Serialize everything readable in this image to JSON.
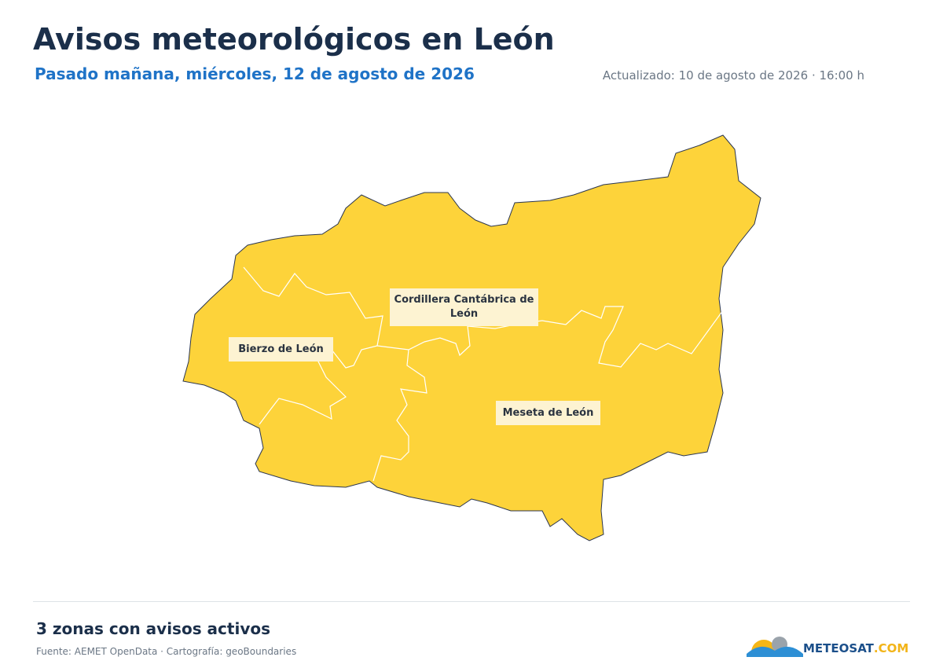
{
  "header": {
    "title": "Avisos meteorológicos en León",
    "subtitle": "Pasado mañana, miércoles, 12 de agosto de 2026",
    "updated": "Actualizado: 10 de agosto de 2026 · 16:00 h"
  },
  "zones": [
    {
      "label": "Cordillera Cantábrica de León"
    },
    {
      "label": "Bierzo de León"
    },
    {
      "label": "Meseta de León"
    }
  ],
  "footer": {
    "summary": "3 zonas con avisos activos",
    "source": "Fuente: AEMET OpenData · Cartografía: geoBoundaries",
    "logo": {
      "name": "METEOSAT",
      "suffix": ".COM"
    }
  }
}
